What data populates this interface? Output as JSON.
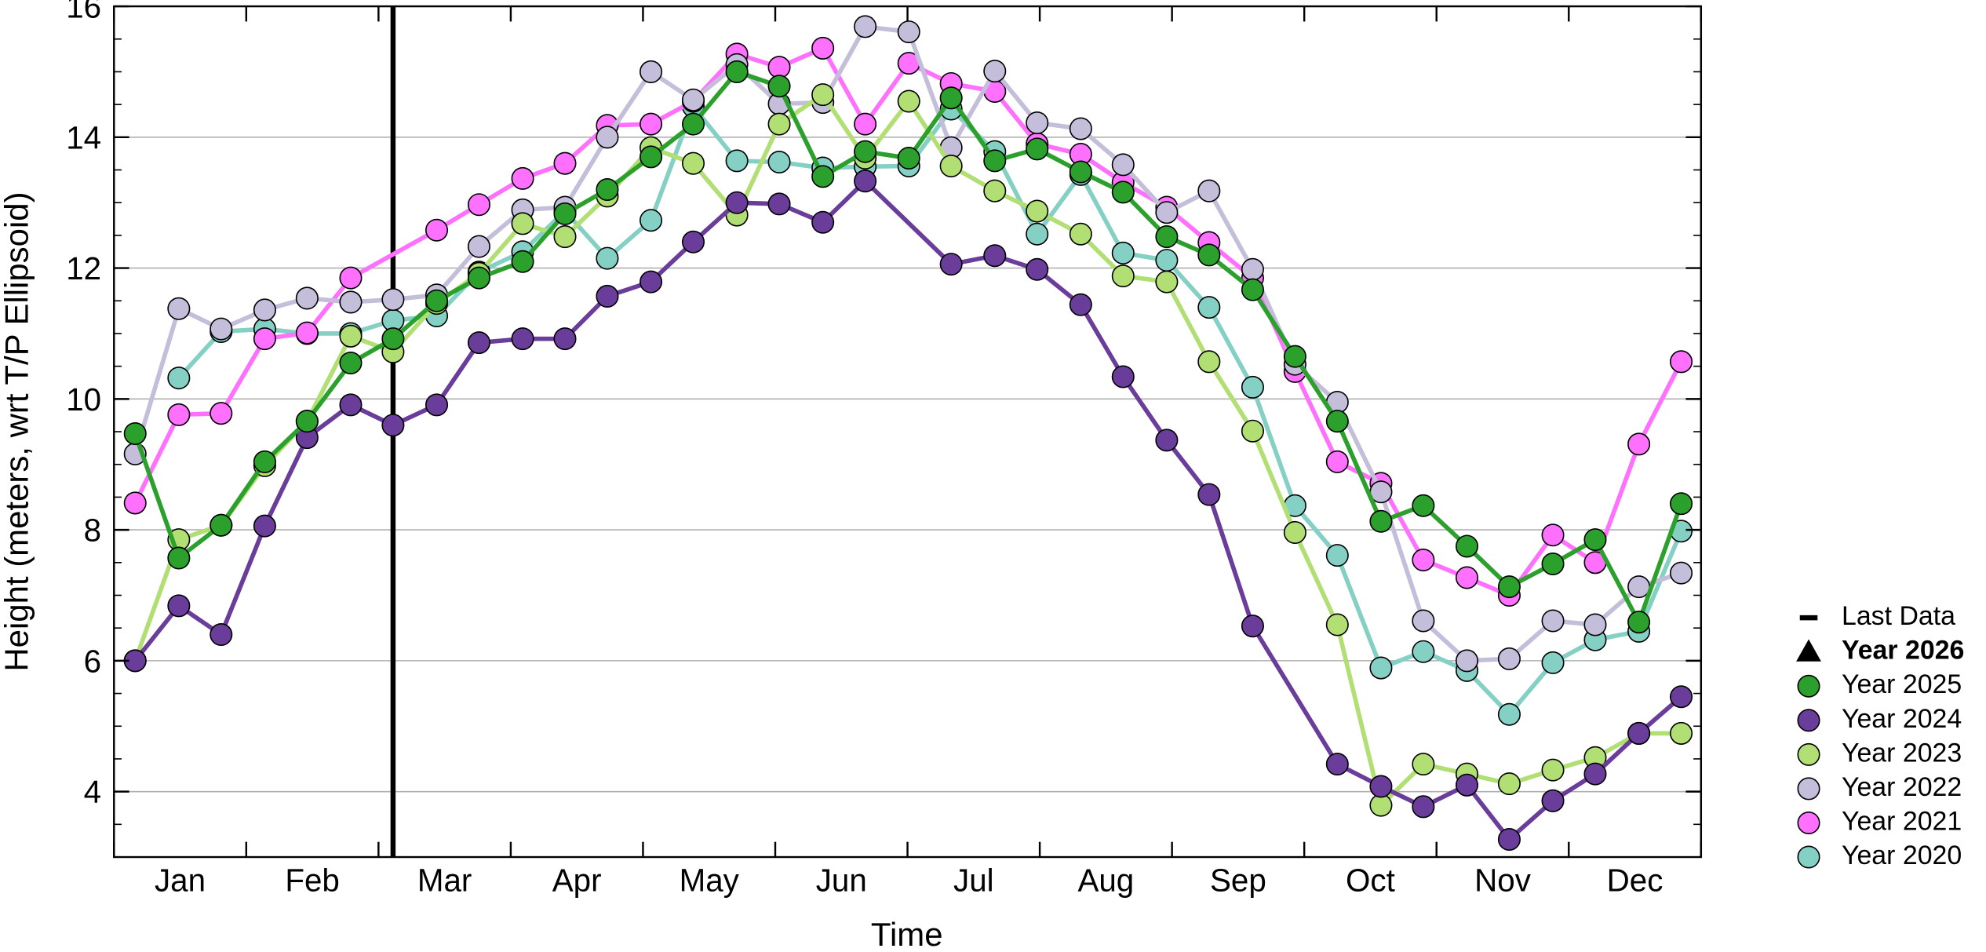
{
  "chart_data": {
    "type": "line",
    "xlabel": "Time",
    "ylabel": "Height (meters, wrt T/P Ellipsoid)",
    "xlim": [
      0,
      12
    ],
    "xticks": [
      {
        "value": 0.5,
        "label": "Jan"
      },
      {
        "value": 1.5,
        "label": "Feb"
      },
      {
        "value": 2.5,
        "label": "Mar"
      },
      {
        "value": 3.5,
        "label": "Apr"
      },
      {
        "value": 4.5,
        "label": "May"
      },
      {
        "value": 5.5,
        "label": "Jun"
      },
      {
        "value": 6.5,
        "label": "Jul"
      },
      {
        "value": 7.5,
        "label": "Aug"
      },
      {
        "value": 8.5,
        "label": "Sep"
      },
      {
        "value": 9.5,
        "label": "Oct"
      },
      {
        "value": 10.5,
        "label": "Nov"
      },
      {
        "value": 11.5,
        "label": "Dec"
      }
    ],
    "ylim": [
      3,
      16
    ],
    "yticks": [
      4,
      6,
      8,
      10,
      12,
      14,
      16
    ],
    "grid": true,
    "x": [
      0.16,
      0.49,
      0.81,
      1.14,
      1.46,
      1.79,
      2.11,
      2.44,
      2.76,
      3.09,
      3.41,
      3.73,
      4.06,
      4.38,
      4.71,
      5.03,
      5.36,
      5.68,
      6.01,
      6.33,
      6.66,
      6.98,
      7.31,
      7.63,
      7.96,
      8.28,
      8.61,
      8.93,
      9.25,
      9.58,
      9.9,
      10.23,
      10.55,
      10.88,
      11.2,
      11.53,
      11.85
    ],
    "vlines": [
      {
        "name": "Last Data",
        "x": 2.11,
        "color": "#000000"
      }
    ],
    "series": [
      {
        "name": "Year 2026",
        "color": "#000000",
        "marker": "triangle",
        "bold": true,
        "x": [],
        "values": []
      },
      {
        "name": "Year 2025",
        "color": "#2ca02c",
        "marker": "circle",
        "values": [
          9.47,
          7.57,
          8.07,
          9.04,
          9.66,
          10.55,
          10.92,
          11.5,
          11.85,
          12.1,
          12.83,
          13.2,
          13.7,
          14.2,
          15.0,
          14.78,
          13.4,
          13.78,
          13.68,
          14.6,
          13.64,
          13.82,
          13.47,
          13.16,
          12.48,
          12.2,
          11.67,
          10.65,
          9.66,
          8.13,
          8.37,
          7.75,
          7.13,
          7.48,
          7.85,
          6.59,
          8.4
        ]
      },
      {
        "name": "Year 2024",
        "color": "#6a3d9a",
        "marker": "circle",
        "x": [
          0.16,
          0.49,
          0.81,
          1.14,
          1.46,
          1.79,
          2.11,
          2.44,
          2.76,
          3.09,
          3.41,
          3.73,
          4.06,
          4.38,
          4.71,
          5.03,
          5.36,
          5.68,
          6.33,
          6.66,
          6.98,
          7.31,
          7.63,
          7.96,
          8.28,
          8.61,
          9.25,
          9.58,
          9.9,
          10.23,
          10.55,
          10.88,
          11.2,
          11.53,
          11.85
        ],
        "values": [
          6.0,
          6.84,
          6.4,
          8.06,
          9.41,
          9.91,
          9.6,
          9.91,
          10.86,
          10.92,
          10.92,
          11.57,
          11.79,
          12.4,
          13.0,
          12.98,
          12.7,
          13.33,
          12.06,
          12.19,
          11.98,
          11.44,
          10.34,
          9.37,
          8.54,
          6.53,
          4.42,
          4.08,
          3.77,
          4.1,
          3.27,
          3.86,
          4.27,
          4.89,
          5.45
        ]
      },
      {
        "name": "Year 2023",
        "color": "#b2df74",
        "marker": "circle",
        "values": [
          6.0,
          7.85,
          8.07,
          8.98,
          9.66,
          10.96,
          10.72,
          11.46,
          11.92,
          12.68,
          12.48,
          13.1,
          13.84,
          13.6,
          12.81,
          14.2,
          14.65,
          13.68,
          14.55,
          13.56,
          13.18,
          12.87,
          12.52,
          11.88,
          11.79,
          10.57,
          9.51,
          7.96,
          6.55,
          3.79,
          4.42,
          4.27,
          4.12,
          4.33,
          4.52,
          4.89,
          4.89
        ]
      },
      {
        "name": "Year 2022",
        "color": "#c4bedb",
        "marker": "circle",
        "values": [
          9.16,
          11.38,
          11.07,
          11.36,
          11.54,
          11.48,
          11.52,
          11.59,
          12.33,
          12.89,
          12.93,
          14.0,
          15.0,
          14.57,
          15.11,
          14.51,
          14.53,
          15.69,
          15.61,
          13.84,
          15.01,
          14.22,
          14.13,
          13.58,
          12.85,
          13.18,
          11.98,
          10.53,
          9.95,
          8.58,
          6.61,
          6.0,
          6.03,
          6.61,
          6.55,
          7.13,
          7.34
        ]
      },
      {
        "name": "Year 2021",
        "color": "#ff70ff",
        "marker": "circle",
        "x": [
          0.16,
          0.49,
          0.81,
          1.14,
          1.46,
          1.79,
          2.44,
          2.76,
          3.09,
          3.41,
          3.73,
          4.06,
          4.38,
          4.71,
          5.03,
          5.36,
          5.68,
          6.01,
          6.33,
          6.66,
          6.98,
          7.31,
          7.63,
          7.96,
          8.28,
          8.61,
          8.93,
          9.25,
          9.58,
          9.9,
          10.23,
          10.55,
          10.88,
          11.2,
          11.53,
          11.85
        ],
        "values": [
          8.41,
          9.76,
          9.78,
          10.92,
          11.01,
          11.85,
          12.58,
          12.97,
          13.37,
          13.6,
          14.18,
          14.2,
          14.55,
          15.27,
          15.07,
          15.36,
          14.2,
          15.13,
          14.82,
          14.7,
          13.9,
          13.74,
          13.31,
          12.93,
          12.39,
          11.85,
          10.42,
          9.04,
          8.71,
          7.54,
          7.27,
          7.0,
          7.92,
          7.5,
          9.31,
          10.57
        ]
      },
      {
        "name": "Year 2020",
        "color": "#84d0c4",
        "marker": "circle",
        "x": [
          0.49,
          0.81,
          1.14,
          1.46,
          1.79,
          2.11,
          2.44,
          2.76,
          3.09,
          3.41,
          3.73,
          4.06,
          4.38,
          4.71,
          5.03,
          5.36,
          5.68,
          6.01,
          6.33,
          6.66,
          6.98,
          7.31,
          7.63,
          7.96,
          8.28,
          8.61,
          8.93,
          9.25,
          9.58,
          9.9,
          10.23,
          10.55,
          10.88,
          11.2,
          11.53,
          11.85
        ],
        "values": [
          10.32,
          11.03,
          11.07,
          11.0,
          11.0,
          11.2,
          11.27,
          11.94,
          12.25,
          12.87,
          12.15,
          12.73,
          14.47,
          13.64,
          13.62,
          13.53,
          13.55,
          13.56,
          14.43,
          13.78,
          12.52,
          13.43,
          12.23,
          12.12,
          11.4,
          10.18,
          8.37,
          7.61,
          5.89,
          6.14,
          5.85,
          5.18,
          5.97,
          6.32,
          6.45,
          7.98
        ]
      }
    ]
  }
}
